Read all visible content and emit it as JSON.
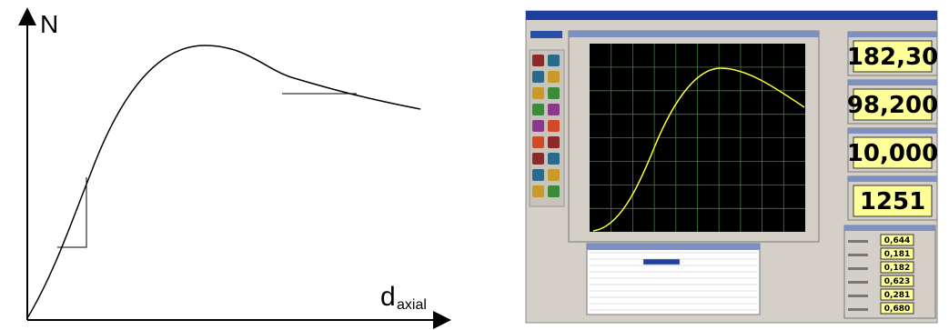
{
  "diagram": {
    "y_axis_label": "N",
    "x_axis_label": "d",
    "x_axis_subscript": "axial"
  },
  "screenshot": {
    "readouts": [
      "182,30",
      "98,200",
      "10,000",
      "1251"
    ],
    "channel_values": [
      "0,644",
      "0,181",
      "0,182",
      "0,623",
      "0,281",
      "0,680"
    ]
  }
}
